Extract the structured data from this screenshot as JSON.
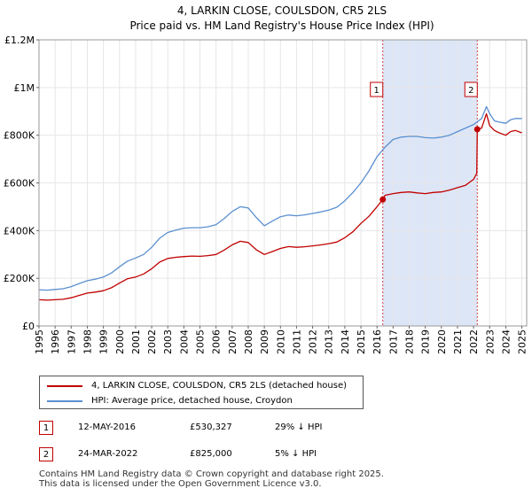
{
  "chart_data": {
    "type": "line",
    "title": "4, LARKIN CLOSE, COULSDON, CR5 2LS",
    "subtitle": "Price paid vs. HM Land Registry's House Price Index (HPI)",
    "xlabel": "",
    "ylabel": "",
    "xlim": [
      1995,
      2025.3
    ],
    "ylim": [
      0,
      1200000
    ],
    "x_ticks": [
      "1995",
      "1996",
      "1997",
      "1998",
      "1999",
      "2000",
      "2001",
      "2002",
      "2003",
      "2004",
      "2005",
      "2006",
      "2007",
      "2008",
      "2009",
      "2010",
      "2011",
      "2012",
      "2013",
      "2014",
      "2015",
      "2016",
      "2017",
      "2018",
      "2019",
      "2020",
      "2021",
      "2022",
      "2023",
      "2024",
      "2025"
    ],
    "y_ticks": [
      {
        "value": 0,
        "label": "£0"
      },
      {
        "value": 200000,
        "label": "£200K"
      },
      {
        "value": 400000,
        "label": "£400K"
      },
      {
        "value": 600000,
        "label": "£600K"
      },
      {
        "value": 800000,
        "label": "£800K"
      },
      {
        "value": 1000000,
        "label": "£1M"
      },
      {
        "value": 1200000,
        "label": "£1.2M"
      }
    ],
    "grid": true,
    "shaded_region": {
      "x0": 2016.36,
      "x1": 2022.23,
      "color": "#dde6f7"
    },
    "markers": [
      {
        "label": "1",
        "x": 2016.36,
        "y": 530327
      },
      {
        "label": "2",
        "x": 2022.23,
        "y": 825000
      }
    ],
    "series": [
      {
        "name": "4, LARKIN CLOSE, COULSDON, CR5 2LS (detached house)",
        "color": "#c00000",
        "x": [
          1995.0,
          1995.5,
          1996.0,
          1996.5,
          1997.0,
          1997.5,
          1998.0,
          1998.5,
          1999.0,
          1999.5,
          2000.0,
          2000.5,
          2001.0,
          2001.5,
          2002.0,
          2002.5,
          2003.0,
          2003.5,
          2004.0,
          2004.5,
          2005.0,
          2005.5,
          2006.0,
          2006.5,
          2007.0,
          2007.5,
          2008.0,
          2008.5,
          2009.0,
          2009.5,
          2010.0,
          2010.5,
          2011.0,
          2011.5,
          2012.0,
          2012.5,
          2013.0,
          2013.5,
          2014.0,
          2014.5,
          2015.0,
          2015.5,
          2016.0,
          2016.36,
          2016.5,
          2017.0,
          2017.5,
          2018.0,
          2018.5,
          2019.0,
          2019.5,
          2020.0,
          2020.5,
          2021.0,
          2021.5,
          2022.0,
          2022.2,
          2022.23,
          2022.5,
          2022.8,
          2023.0,
          2023.3,
          2023.6,
          2024.0,
          2024.3,
          2024.6,
          2025.0
        ],
        "values": [
          110000,
          108000,
          110000,
          112000,
          118000,
          128000,
          138000,
          142000,
          148000,
          160000,
          180000,
          198000,
          205000,
          218000,
          240000,
          268000,
          283000,
          288000,
          291000,
          293000,
          292000,
          295000,
          300000,
          318000,
          340000,
          355000,
          350000,
          320000,
          300000,
          312000,
          325000,
          333000,
          330000,
          332000,
          336000,
          340000,
          345000,
          352000,
          370000,
          395000,
          430000,
          460000,
          500000,
          530327,
          548000,
          555000,
          560000,
          562000,
          558000,
          555000,
          560000,
          562000,
          570000,
          580000,
          590000,
          615000,
          640000,
          825000,
          830000,
          890000,
          840000,
          820000,
          810000,
          800000,
          815000,
          820000,
          810000
        ]
      },
      {
        "name": "HPI: Average price, detached house, Croydon",
        "color": "#5b8fd0",
        "x": [
          1995.0,
          1995.5,
          1996.0,
          1996.5,
          1997.0,
          1997.5,
          1998.0,
          1998.5,
          1999.0,
          1999.5,
          2000.0,
          2000.5,
          2001.0,
          2001.5,
          2002.0,
          2002.5,
          2003.0,
          2003.5,
          2004.0,
          2004.5,
          2005.0,
          2005.5,
          2006.0,
          2006.5,
          2007.0,
          2007.5,
          2008.0,
          2008.5,
          2009.0,
          2009.5,
          2010.0,
          2010.5,
          2011.0,
          2011.5,
          2012.0,
          2012.5,
          2013.0,
          2013.5,
          2014.0,
          2014.5,
          2015.0,
          2015.5,
          2016.0,
          2016.5,
          2017.0,
          2017.5,
          2018.0,
          2018.5,
          2019.0,
          2019.5,
          2020.0,
          2020.5,
          2021.0,
          2021.5,
          2022.0,
          2022.5,
          2022.8,
          2023.0,
          2023.3,
          2023.6,
          2024.0,
          2024.3,
          2024.6,
          2025.0
        ],
        "values": [
          152000,
          150000,
          153000,
          156000,
          165000,
          178000,
          190000,
          196000,
          205000,
          222000,
          248000,
          272000,
          285000,
          300000,
          330000,
          368000,
          392000,
          402000,
          410000,
          412000,
          412000,
          416000,
          425000,
          450000,
          480000,
          500000,
          495000,
          455000,
          420000,
          440000,
          458000,
          465000,
          462000,
          466000,
          472000,
          478000,
          486000,
          498000,
          525000,
          560000,
          600000,
          650000,
          710000,
          750000,
          782000,
          792000,
          795000,
          795000,
          790000,
          788000,
          792000,
          800000,
          815000,
          830000,
          845000,
          870000,
          920000,
          890000,
          860000,
          855000,
          850000,
          865000,
          870000,
          870000
        ]
      }
    ]
  },
  "legend": {
    "items": [
      {
        "label": "4, LARKIN CLOSE, COULSDON, CR5 2LS (detached house)",
        "color": "#c00000"
      },
      {
        "label": "HPI: Average price, detached house, Croydon",
        "color": "#5b8fd0"
      }
    ]
  },
  "sales": [
    {
      "badge": "1",
      "date": "12-MAY-2016",
      "price": "£530,327",
      "hpi": "29% ↓ HPI"
    },
    {
      "badge": "2",
      "date": "24-MAR-2022",
      "price": "£825,000",
      "hpi": "5% ↓ HPI"
    }
  ],
  "footer": {
    "line1": "Contains HM Land Registry data © Crown copyright and database right 2025.",
    "line2": "This data is licensed under the Open Government Licence v3.0."
  }
}
